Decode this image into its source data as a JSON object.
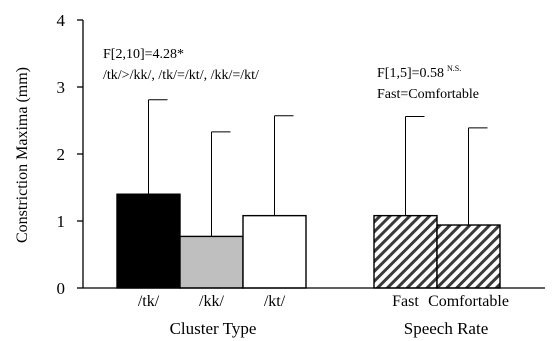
{
  "chart_data": {
    "type": "bar",
    "ylabel": "Constriction Maxima (mm)",
    "ylim": [
      0,
      4
    ],
    "yticks": [
      "0",
      "1",
      "2",
      "3",
      "4"
    ],
    "groups": [
      {
        "label": "Cluster Type",
        "bars": [
          {
            "category": "/tk/",
            "value": 1.4,
            "error": 1.41,
            "fill": "#000000"
          },
          {
            "category": "/kk/",
            "value": 0.77,
            "error": 1.56,
            "fill": "#bfbfbf"
          },
          {
            "category": "/kt/",
            "value": 1.08,
            "error": 1.49,
            "fill": "#ffffff"
          }
        ],
        "annotation": {
          "line1": "F[2,10]=4.28*",
          "line2": "/tk/>/kk/, /tk/=/kt/, /kk/=/kt/"
        }
      },
      {
        "label": "Speech Rate",
        "bars": [
          {
            "category": "Fast",
            "value": 1.08,
            "error": 1.48,
            "fill": "hatch"
          },
          {
            "category": "Comfortable",
            "value": 0.94,
            "error": 1.45,
            "fill": "hatch"
          }
        ],
        "annotation": {
          "line1": "F[1,5]=0.58",
          "line1_sup": "N.S.",
          "line2": "Fast=Comfortable"
        }
      }
    ]
  }
}
